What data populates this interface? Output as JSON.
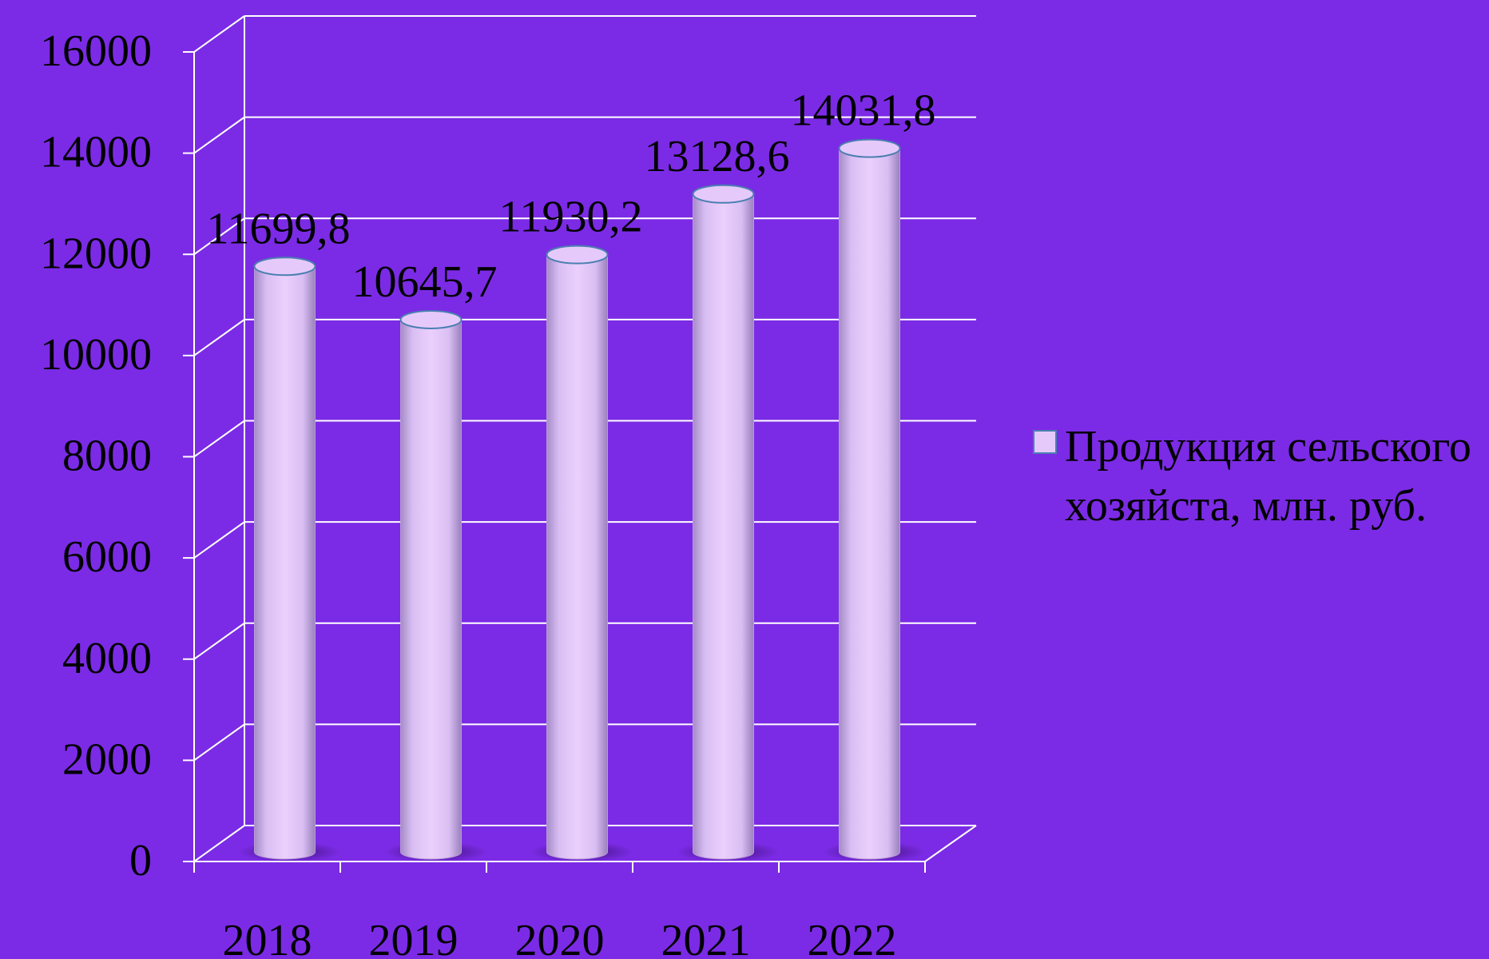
{
  "chart_data": {
    "type": "bar",
    "categories": [
      "2018",
      "2019",
      "2020",
      "2021",
      "2022"
    ],
    "series": [
      {
        "name": "Продукция сельского хозяйста, млн. руб.",
        "values": [
          11699.8,
          10645.7,
          11930.2,
          13128.6,
          14031.8
        ],
        "labels": [
          "11699,8",
          "10645,7",
          "11930,2",
          "13128,6",
          "14031,8"
        ]
      }
    ],
    "yticks": [
      "0",
      "2000",
      "4000",
      "6000",
      "8000",
      "10000",
      "12000",
      "14000",
      "16000"
    ],
    "ylim": [
      0,
      16000
    ],
    "grid": true,
    "legend_position": "right",
    "style": "3d-cylinder",
    "colors": {
      "background": "#7b2be5",
      "bar": "#e6c9fb",
      "bar_shade": "#b79ad4",
      "bar_outline": "#4a7fb0",
      "gridlines": "#ffffff"
    }
  }
}
